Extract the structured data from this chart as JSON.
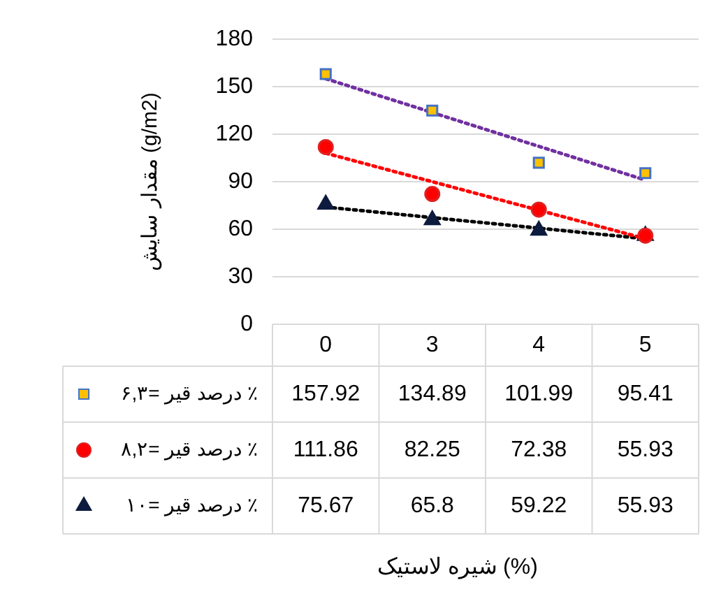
{
  "chart_data": {
    "type": "scatter",
    "ylabel": "مقدار سایش (g/m2)",
    "annotations": [
      "شیره لاستیک (%)"
    ],
    "categories": [
      "0",
      "3",
      "4",
      "5"
    ],
    "ylim": [
      0,
      180
    ],
    "yticks": [
      0,
      30,
      60,
      90,
      120,
      150,
      180
    ],
    "grid": "y",
    "legend": "bottom",
    "series": [
      {
        "name": "درصد قیر =۶,۳ ٪",
        "color": "#ffc000",
        "marker": "square",
        "values": [
          157.92,
          134.89,
          101.99,
          95.41
        ],
        "value_labels": [
          "157.92",
          "134.89",
          "101.99",
          "95.41"
        ]
      },
      {
        "name": "درصد قیر =۸,۲ ٪",
        "color": "#ff0000",
        "marker": "circle",
        "values": [
          111.86,
          82.25,
          72.38,
          55.93
        ],
        "value_labels": [
          "111.86",
          "82.25",
          "72.38",
          "55.93"
        ]
      },
      {
        "name": "درصد قیر =۱۰ ٪",
        "color": "#0d1b3e",
        "marker": "triangle",
        "values": [
          75.67,
          65.8,
          59.22,
          55.93
        ],
        "value_labels": [
          "75.67",
          "65.8",
          "59.22",
          "55.93"
        ]
      },
      {
        "type": "line",
        "color": "#7030a0",
        "marker": "none",
        "line_style": "dotted",
        "values": [
          155,
          null,
          null,
          91
        ]
      },
      {
        "type": "line",
        "color": "#ff0000",
        "marker": "none",
        "line_style": "dotted",
        "values": [
          108,
          null,
          null,
          54
        ]
      },
      {
        "type": "line",
        "color": "#000000",
        "marker": "none",
        "line_style": "dotted",
        "values": [
          74,
          null,
          null,
          54
        ]
      }
    ]
  }
}
